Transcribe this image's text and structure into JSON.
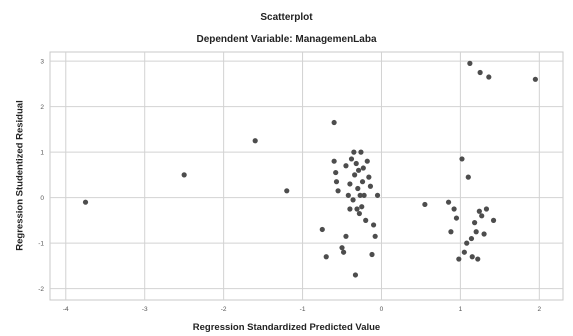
{
  "chart_data": {
    "type": "scatter",
    "title": "Scatterplot",
    "subtitle": "Dependent Variable: ManagemenLaba",
    "xlabel": "Regression Standardized Predicted Value",
    "ylabel": "Regression Studentized Residual",
    "xlim": [
      -4.2,
      2.3
    ],
    "ylim": [
      -2.25,
      3.2
    ],
    "xticks": [
      -4,
      -3,
      -2,
      -1,
      0,
      1,
      2
    ],
    "yticks": [
      -2,
      -1,
      0,
      1,
      2,
      3
    ],
    "grid": true,
    "point_color": "#4d4d4d",
    "points": [
      [
        -3.75,
        -0.1
      ],
      [
        -2.5,
        0.5
      ],
      [
        -1.6,
        1.25
      ],
      [
        -1.2,
        0.15
      ],
      [
        -0.75,
        -0.7
      ],
      [
        -0.7,
        -1.3
      ],
      [
        -0.6,
        1.65
      ],
      [
        -0.6,
        0.8
      ],
      [
        -0.58,
        0.55
      ],
      [
        -0.57,
        0.35
      ],
      [
        -0.55,
        0.15
      ],
      [
        -0.5,
        -1.1
      ],
      [
        -0.48,
        -1.2
      ],
      [
        -0.45,
        -0.85
      ],
      [
        -0.45,
        0.7
      ],
      [
        -0.42,
        0.05
      ],
      [
        -0.4,
        -0.25
      ],
      [
        -0.4,
        0.3
      ],
      [
        -0.38,
        0.85
      ],
      [
        -0.36,
        -0.05
      ],
      [
        -0.35,
        1.0
      ],
      [
        -0.34,
        0.5
      ],
      [
        -0.33,
        -1.7
      ],
      [
        -0.32,
        0.75
      ],
      [
        -0.31,
        -0.25
      ],
      [
        -0.3,
        0.2
      ],
      [
        -0.29,
        0.6
      ],
      [
        -0.28,
        -0.35
      ],
      [
        -0.27,
        0.05
      ],
      [
        -0.26,
        1.0
      ],
      [
        -0.25,
        -0.2
      ],
      [
        -0.24,
        0.35
      ],
      [
        -0.23,
        0.65
      ],
      [
        -0.22,
        0.05
      ],
      [
        -0.2,
        -0.5
      ],
      [
        -0.18,
        0.8
      ],
      [
        -0.16,
        0.45
      ],
      [
        -0.14,
        0.25
      ],
      [
        -0.12,
        -1.25
      ],
      [
        -0.1,
        -0.6
      ],
      [
        -0.08,
        -0.85
      ],
      [
        -0.05,
        0.05
      ],
      [
        0.55,
        -0.15
      ],
      [
        0.85,
        -0.1
      ],
      [
        0.88,
        -0.75
      ],
      [
        0.92,
        -0.25
      ],
      [
        0.95,
        -0.45
      ],
      [
        0.98,
        -1.35
      ],
      [
        1.02,
        0.85
      ],
      [
        1.05,
        -1.2
      ],
      [
        1.08,
        -1.0
      ],
      [
        1.1,
        0.45
      ],
      [
        1.12,
        2.95
      ],
      [
        1.14,
        -0.9
      ],
      [
        1.15,
        -1.3
      ],
      [
        1.18,
        -0.55
      ],
      [
        1.2,
        -0.75
      ],
      [
        1.22,
        -1.35
      ],
      [
        1.24,
        -0.3
      ],
      [
        1.25,
        2.75
      ],
      [
        1.27,
        -0.4
      ],
      [
        1.3,
        -0.8
      ],
      [
        1.33,
        -0.25
      ],
      [
        1.36,
        2.65
      ],
      [
        1.42,
        -0.5
      ],
      [
        1.95,
        2.6
      ]
    ]
  }
}
